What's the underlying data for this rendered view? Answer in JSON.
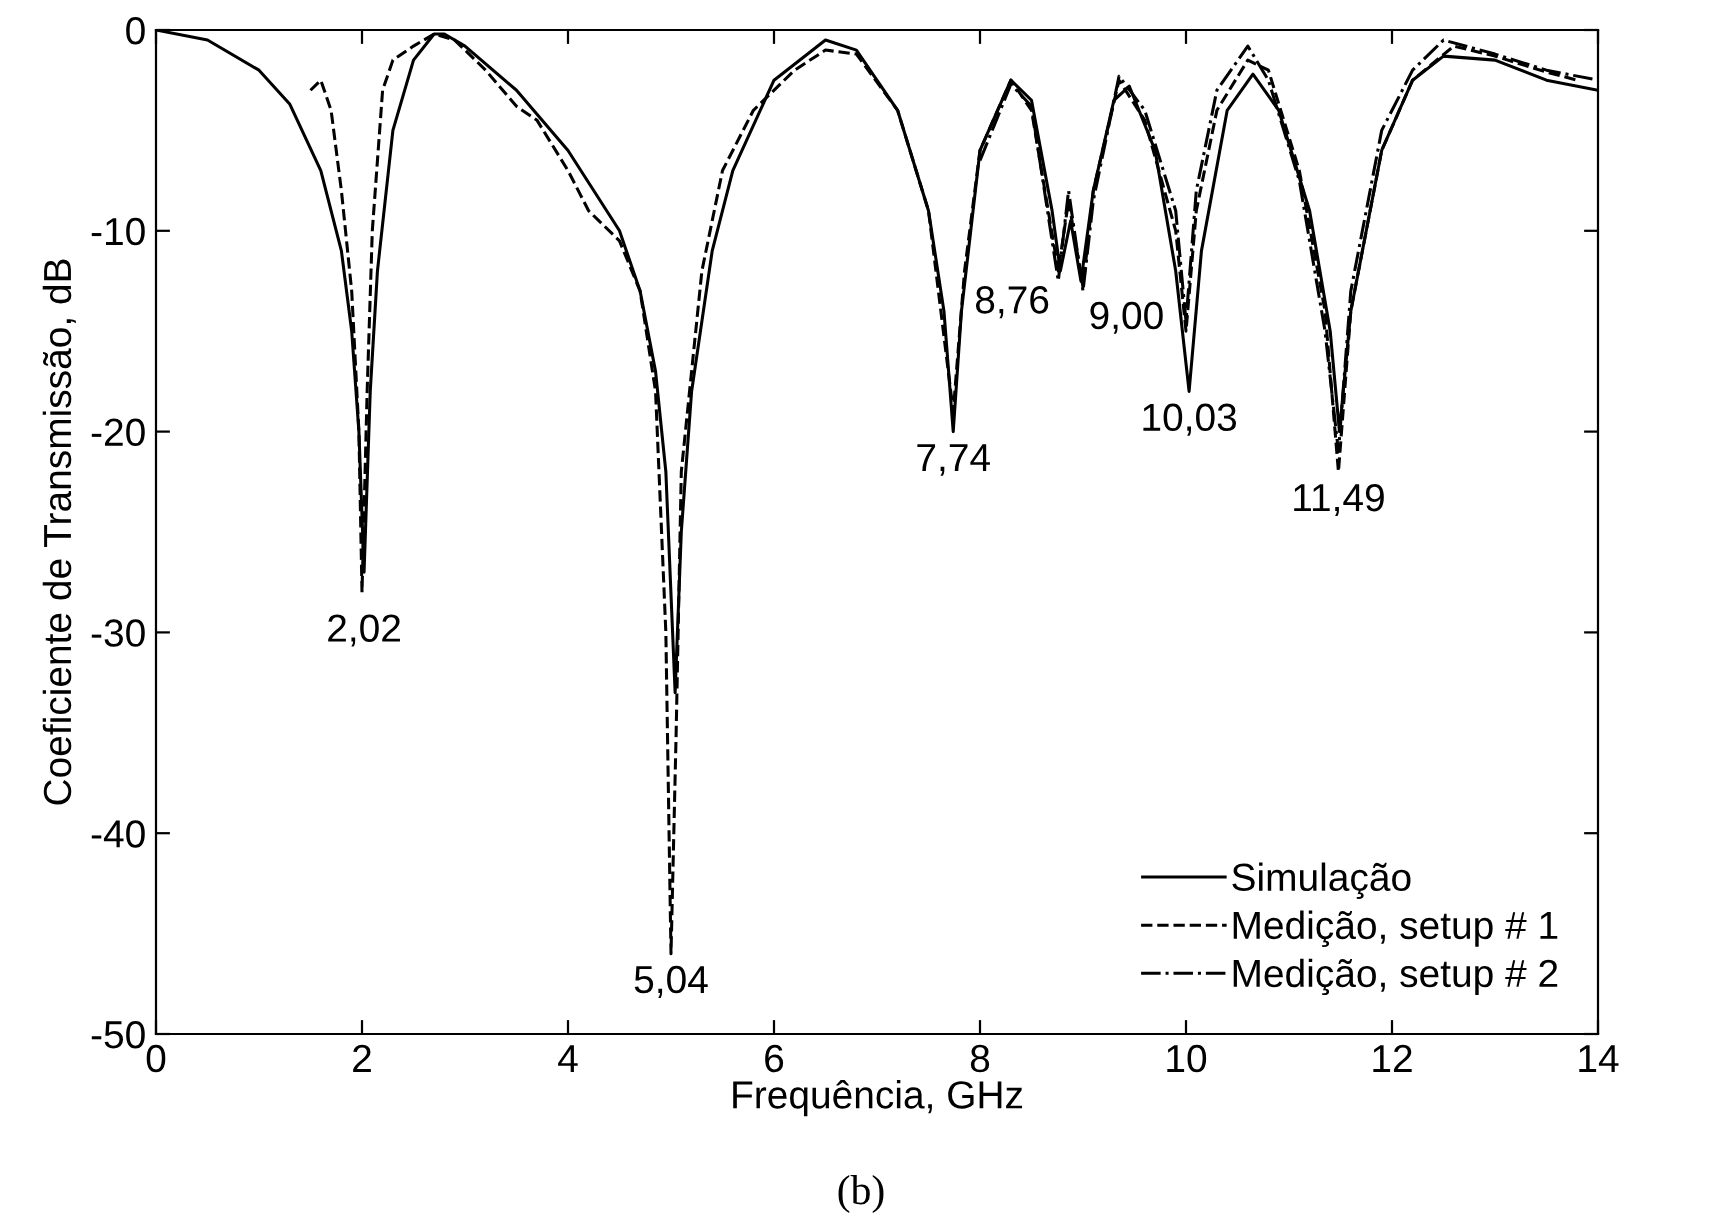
{
  "chart_data": {
    "type": "line",
    "xlabel": "Frequência, GHz",
    "ylabel": "Coeficiente de Transmissão, dB",
    "xlim": [
      0,
      14
    ],
    "ylim": [
      -50,
      0
    ],
    "xticks": [
      0,
      2,
      4,
      6,
      8,
      10,
      12,
      14
    ],
    "yticks": [
      -50,
      -40,
      -30,
      -20,
      -10,
      0
    ],
    "grid": false,
    "legend": "bottom right",
    "marker": "none",
    "series": [
      {
        "name": "Simulação",
        "color": "#000000",
        "line_style": "solid",
        "x": [
          0,
          0.5,
          1.0,
          1.3,
          1.6,
          1.8,
          1.9,
          1.97,
          2.02,
          2.08,
          2.15,
          2.3,
          2.5,
          2.7,
          2.8,
          3.0,
          3.5,
          4.0,
          4.5,
          4.7,
          4.85,
          4.95,
          5.04,
          5.1,
          5.2,
          5.4,
          5.6,
          6.0,
          6.5,
          6.8,
          7.2,
          7.5,
          7.65,
          7.74,
          7.82,
          8.0,
          8.3,
          8.5,
          8.7,
          8.78,
          8.88,
          8.98,
          9.1,
          9.3,
          9.45,
          9.7,
          9.9,
          10.03,
          10.15,
          10.4,
          10.65,
          10.9,
          11.2,
          11.4,
          11.49,
          11.6,
          11.9,
          12.2,
          12.5,
          13.0,
          13.5,
          14
        ],
        "values": [
          0,
          -0.5,
          -2,
          -3.7,
          -7,
          -11,
          -15,
          -20,
          -27,
          -18,
          -12,
          -5,
          -1.5,
          -0.2,
          -0.2,
          -0.8,
          -3,
          -6,
          -10,
          -13,
          -17,
          -22,
          -33,
          -25,
          -18,
          -11,
          -7,
          -2.5,
          -0.5,
          -1,
          -4,
          -9,
          -14,
          -20,
          -14,
          -6,
          -2.5,
          -3.5,
          -9,
          -12,
          -9.5,
          -12.5,
          -8,
          -3.5,
          -2.8,
          -6,
          -12,
          -18,
          -11,
          -4,
          -2.2,
          -4,
          -9,
          -15,
          -20,
          -14,
          -6,
          -2.5,
          -1.3,
          -1.5,
          -2.5,
          -3
        ]
      },
      {
        "name": "Medição, setup # 1",
        "color": "#000000",
        "line_style": "dashed",
        "x": [
          1.5,
          1.6,
          1.7,
          1.8,
          1.9,
          1.97,
          2.0,
          2.05,
          2.1,
          2.2,
          2.3,
          2.5,
          2.7,
          2.9,
          3.2,
          3.5,
          3.7,
          4.0,
          4.2,
          4.5,
          4.7,
          4.85,
          4.95,
          5.0,
          5.05,
          5.1,
          5.3,
          5.5,
          5.8,
          6.2,
          6.5,
          6.8,
          7.2,
          7.5,
          7.74,
          7.85,
          8.0,
          8.3,
          8.5,
          8.76,
          8.86,
          9.0,
          9.1,
          9.35,
          9.6,
          9.9,
          10.0,
          10.1,
          10.3,
          10.6,
          10.8,
          11.1,
          11.35,
          11.48,
          11.6,
          11.9,
          12.2,
          12.6,
          13.0,
          13.5,
          13.8
        ],
        "values": [
          -3,
          -2.5,
          -4,
          -8,
          -13,
          -20,
          -28,
          -18,
          -10,
          -3,
          -1.5,
          -0.8,
          -0.2,
          -0.5,
          -2,
          -3.8,
          -4.5,
          -7,
          -9,
          -10.5,
          -13,
          -18,
          -30,
          -46,
          -35,
          -22,
          -12,
          -7,
          -4,
          -2,
          -1,
          -1.2,
          -4,
          -9,
          -19,
          -12,
          -6,
          -2.5,
          -4,
          -12,
          -8.5,
          -12.8,
          -8,
          -2.5,
          -4.5,
          -10,
          -15,
          -9,
          -4,
          -1.5,
          -2,
          -7,
          -14,
          -22,
          -14,
          -6,
          -2.5,
          -0.8,
          -1.3,
          -2.1,
          -2.5
        ]
      },
      {
        "name": "Medição, setup # 2",
        "color": "#000000",
        "line_style": "dashdot",
        "x": [
          8.0,
          8.3,
          8.5,
          8.76,
          8.86,
          9.0,
          9.1,
          9.35,
          9.6,
          9.9,
          10.0,
          10.1,
          10.3,
          10.6,
          10.8,
          11.1,
          11.35,
          11.48,
          11.6,
          11.9,
          12.2,
          12.5,
          13.0,
          13.5,
          14
        ],
        "values": [
          -6.5,
          -2.7,
          -3.8,
          -12.5,
          -8,
          -13,
          -8.5,
          -2.3,
          -4,
          -9,
          -14.5,
          -8,
          -3,
          -0.8,
          -2.5,
          -7.5,
          -15,
          -21,
          -13,
          -5,
          -2,
          -0.5,
          -1.2,
          -2,
          -2.5
        ]
      }
    ],
    "annotations": [
      {
        "text": "2,02",
        "x": 2.02,
        "y": -28.5
      },
      {
        "text": "5,04",
        "x": 5.0,
        "y": -46
      },
      {
        "text": "7,74",
        "x": 7.74,
        "y": -20
      },
      {
        "text": "8,76",
        "x": 8.76,
        "y": -12.5
      },
      {
        "text": "9,00",
        "x": 9.0,
        "y": -13
      },
      {
        "text": "10,03",
        "x": 10.03,
        "y": -18
      },
      {
        "text": "11,49",
        "x": 11.48,
        "y": -22
      },
      "(b)"
    ]
  }
}
